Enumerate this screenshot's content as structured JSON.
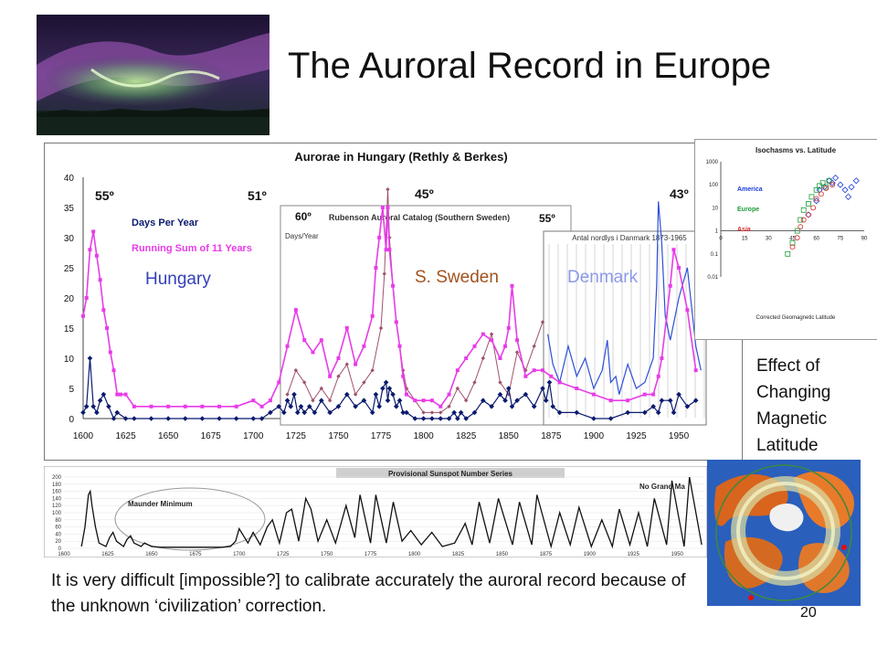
{
  "slide": {
    "title": "The Auroral Record in Europe",
    "page_number": "20",
    "footnote": "It is very difficult [impossible?] to calibrate accurately the auroral record because of the unknown ‘civilization’ correction.",
    "effect_caption_lines": [
      "Effect of",
      "Changing",
      "Magnetic",
      "Latitude"
    ]
  },
  "colors": {
    "days_series": "#0a1a6e",
    "running_sum": "#e83ce8",
    "sweden_line": "#a0526b",
    "denmark_line": "#2e4fd8",
    "hungary_label": "#3340b8",
    "sweden_label": "#a0521e",
    "denmark_label": "#8a9ae6"
  },
  "main_chart": {
    "title": "Aurorae in Hungary (Rethly & Berkes)",
    "legend_days": "Days Per Year",
    "legend_sum": "Running Sum of 11 Years",
    "region_labels": [
      "Hungary",
      "S. Sweden",
      "Denmark"
    ],
    "latitude_labels": [
      "55º",
      "51º",
      "45º",
      "43º",
      "60º",
      "55º"
    ],
    "sweden_inset_title": "Rubenson Auroral Catalog (Southern Sweden)",
    "sweden_inset_ylabel": "Days/Year",
    "denmark_inset_title": "Antal nordlys i Danmark 1873-1965"
  },
  "iso_chart": {
    "title": "Isochasms vs. Latitude",
    "xlabel": "Corrected Geomagnetic Latitude",
    "legend": [
      "America",
      "Europe",
      "Asia"
    ]
  },
  "sunspot_chart": {
    "title": "Provisional Sunspot Number Series",
    "annotations": [
      "Maunder Minimum",
      "No Grand Ma"
    ]
  },
  "chart_data": [
    {
      "type": "line",
      "title": "Aurorae in Hungary (Rethly & Berkes)",
      "xlim": [
        1600,
        1965
      ],
      "ylim": [
        0,
        40
      ],
      "xticks": [
        1600,
        1625,
        1650,
        1675,
        1700,
        1725,
        1750,
        1775,
        1800,
        1825,
        1850,
        1875,
        1900,
        1925,
        1950
      ],
      "yticks": [
        0,
        5,
        10,
        15,
        20,
        25,
        30,
        35,
        40
      ],
      "series": [
        {
          "name": "Days Per Year",
          "x": [
            1600,
            1602,
            1604,
            1606,
            1608,
            1610,
            1612,
            1615,
            1618,
            1620,
            1625,
            1630,
            1640,
            1650,
            1660,
            1670,
            1680,
            1690,
            1700,
            1705,
            1710,
            1715,
            1718,
            1720,
            1722,
            1724,
            1726,
            1728,
            1730,
            1733,
            1736,
            1740,
            1745,
            1750,
            1755,
            1760,
            1765,
            1770,
            1772,
            1774,
            1776,
            1778,
            1779,
            1780,
            1782,
            1784,
            1786,
            1788,
            1790,
            1795,
            1800,
            1805,
            1810,
            1815,
            1818,
            1820,
            1822,
            1825,
            1830,
            1835,
            1840,
            1845,
            1848,
            1850,
            1852,
            1855,
            1860,
            1865,
            1870,
            1872,
            1874,
            1876,
            1880,
            1890,
            1900,
            1910,
            1920,
            1930,
            1935,
            1938,
            1940,
            1945,
            1947,
            1950,
            1955,
            1960
          ],
          "values": [
            1,
            2,
            10,
            2,
            1,
            3,
            4,
            2,
            0,
            1,
            0,
            0,
            0,
            0,
            0,
            0,
            0,
            0,
            0,
            0,
            1,
            2,
            1,
            3,
            2,
            4,
            1,
            2,
            1,
            2,
            1,
            3,
            1,
            2,
            4,
            2,
            3,
            1,
            4,
            2,
            5,
            6,
            3,
            5,
            4,
            2,
            3,
            1,
            1,
            0,
            0,
            0,
            0,
            0,
            1,
            0,
            1,
            0,
            1,
            3,
            2,
            4,
            3,
            5,
            2,
            3,
            4,
            2,
            5,
            3,
            6,
            2,
            1,
            1,
            0,
            0,
            1,
            1,
            2,
            1,
            3,
            3,
            1,
            4,
            2,
            3
          ]
        },
        {
          "name": "Running Sum of 11 Years",
          "x": [
            1600,
            1602,
            1604,
            1606,
            1608,
            1610,
            1612,
            1614,
            1616,
            1618,
            1620,
            1622,
            1625,
            1630,
            1640,
            1650,
            1660,
            1670,
            1680,
            1690,
            1700,
            1705,
            1710,
            1715,
            1720,
            1725,
            1730,
            1735,
            1740,
            1745,
            1750,
            1755,
            1760,
            1765,
            1770,
            1772,
            1774,
            1776,
            1778,
            1779,
            1780,
            1782,
            1784,
            1786,
            1788,
            1790,
            1795,
            1800,
            1805,
            1810,
            1815,
            1820,
            1825,
            1830,
            1835,
            1840,
            1845,
            1848,
            1850,
            1852,
            1855,
            1860,
            1865,
            1870,
            1875,
            1880,
            1890,
            1900,
            1910,
            1920,
            1930,
            1935,
            1938,
            1940,
            1945,
            1947,
            1950,
            1955,
            1960
          ],
          "values": [
            17,
            20,
            28,
            31,
            27,
            23,
            18,
            15,
            11,
            8,
            4,
            4,
            4,
            2,
            2,
            2,
            2,
            2,
            2,
            2,
            3,
            2,
            3,
            6,
            12,
            18,
            13,
            11,
            13,
            7,
            10,
            15,
            9,
            12,
            17,
            25,
            30,
            35,
            28,
            35,
            28,
            22,
            16,
            12,
            7,
            4,
            3,
            3,
            3,
            2,
            4,
            8,
            10,
            12,
            14,
            13,
            10,
            12,
            15,
            22,
            13,
            7,
            8,
            8,
            7,
            6,
            5,
            4,
            3,
            3,
            4,
            4,
            7,
            10,
            22,
            28,
            25,
            18,
            8
          ]
        },
        {
          "name": "S. Sweden",
          "x": [
            1720,
            1725,
            1730,
            1735,
            1740,
            1745,
            1750,
            1755,
            1760,
            1765,
            1770,
            1775,
            1777,
            1779,
            1780,
            1782,
            1784,
            1786,
            1788,
            1790,
            1795,
            1800,
            1805,
            1810,
            1815,
            1820,
            1825,
            1830,
            1835,
            1840,
            1845,
            1850,
            1855,
            1860,
            1865,
            1870
          ],
          "values": [
            4,
            8,
            6,
            3,
            5,
            3,
            7,
            9,
            4,
            6,
            8,
            15,
            24,
            38,
            30,
            22,
            16,
            12,
            8,
            5,
            3,
            1,
            1,
            1,
            2,
            5,
            3,
            6,
            10,
            14,
            6,
            4,
            11,
            8,
            12,
            16
          ]
        },
        {
          "name": "Denmark",
          "x": [
            1873,
            1876,
            1880,
            1885,
            1890,
            1895,
            1900,
            1905,
            1908,
            1910,
            1913,
            1915,
            1920,
            1925,
            1930,
            1935,
            1937,
            1938,
            1940,
            1942,
            1945,
            1950,
            1955,
            1960,
            1963
          ],
          "values": [
            14,
            9,
            6,
            12,
            7,
            10,
            5,
            8,
            13,
            6,
            7,
            4,
            9,
            5,
            6,
            10,
            22,
            36,
            29,
            17,
            13,
            20,
            25,
            12,
            8
          ]
        }
      ]
    },
    {
      "type": "scatter",
      "title": "Isochasms vs. Latitude",
      "xlabel": "Corrected Geomagnetic Latitude",
      "xticks": [
        0,
        15,
        30,
        45,
        60,
        75,
        90
      ],
      "yticks": [
        "0.01",
        "0.1",
        "1",
        "10",
        "100",
        "1000"
      ],
      "scale": "log-y",
      "series": [
        {
          "name": "America",
          "x": [
            55,
            60,
            62,
            65,
            68,
            70,
            72,
            75,
            78,
            80,
            82,
            85
          ],
          "y": [
            5,
            20,
            60,
            80,
            150,
            120,
            200,
            100,
            60,
            30,
            80,
            150
          ]
        },
        {
          "name": "Europe",
          "x": [
            42,
            45,
            48,
            50,
            52,
            55,
            57,
            60,
            62,
            64,
            66,
            68
          ],
          "y": [
            0.1,
            0.3,
            1,
            3,
            8,
            15,
            30,
            60,
            90,
            120,
            80,
            150
          ]
        },
        {
          "name": "Asia",
          "x": [
            45,
            48,
            50,
            52,
            55,
            58,
            60,
            63,
            66,
            70
          ],
          "y": [
            0.2,
            0.5,
            1.5,
            3,
            5,
            10,
            25,
            40,
            70,
            100
          ]
        }
      ]
    },
    {
      "type": "line",
      "title": "Provisional Sunspot Number Series",
      "xlim": [
        1600,
        1965
      ],
      "ylim": [
        0,
        200
      ],
      "xticks": [
        1600,
        1625,
        1650,
        1675,
        1700,
        1725,
        1750,
        1775,
        1800,
        1825,
        1850,
        1875,
        1900,
        1925,
        1950
      ],
      "yticks": [
        0,
        20,
        40,
        60,
        80,
        100,
        120,
        140,
        160,
        180,
        200
      ],
      "series": [
        {
          "name": "",
          "x": [
            1610,
            1612,
            1614,
            1615,
            1616,
            1618,
            1620,
            1624,
            1626,
            1628,
            1630,
            1634,
            1636,
            1638,
            1640,
            1644,
            1646,
            1650,
            1655,
            1660,
            1665,
            1670,
            1675,
            1680,
            1685,
            1690,
            1695,
            1698,
            1700,
            1705,
            1708,
            1712,
            1716,
            1719,
            1723,
            1727,
            1730,
            1734,
            1738,
            1741,
            1745,
            1750,
            1755,
            1761,
            1766,
            1769,
            1775,
            1778,
            1784,
            1788,
            1793,
            1798,
            1804,
            1810,
            1816,
            1823,
            1829,
            1833,
            1837,
            1843,
            1848,
            1856,
            1860,
            1867,
            1870,
            1878,
            1883,
            1889,
            1894,
            1901,
            1907,
            1913,
            1917,
            1923,
            1928,
            1933,
            1937,
            1944,
            1947,
            1954,
            1957,
            1964
          ],
          "values": [
            5,
            60,
            150,
            160,
            120,
            60,
            15,
            5,
            30,
            45,
            20,
            5,
            25,
            35,
            15,
            5,
            15,
            5,
            3,
            3,
            3,
            3,
            3,
            3,
            3,
            3,
            5,
            20,
            55,
            15,
            45,
            10,
            60,
            80,
            15,
            100,
            110,
            20,
            140,
            110,
            20,
            80,
            15,
            120,
            30,
            150,
            15,
            150,
            15,
            130,
            20,
            50,
            10,
            45,
            5,
            15,
            70,
            10,
            130,
            15,
            140,
            10,
            130,
            10,
            150,
            5,
            100,
            10,
            115,
            5,
            80,
            5,
            110,
            10,
            100,
            5,
            140,
            10,
            190,
            5,
            250,
            10
          ]
        }
      ]
    }
  ]
}
